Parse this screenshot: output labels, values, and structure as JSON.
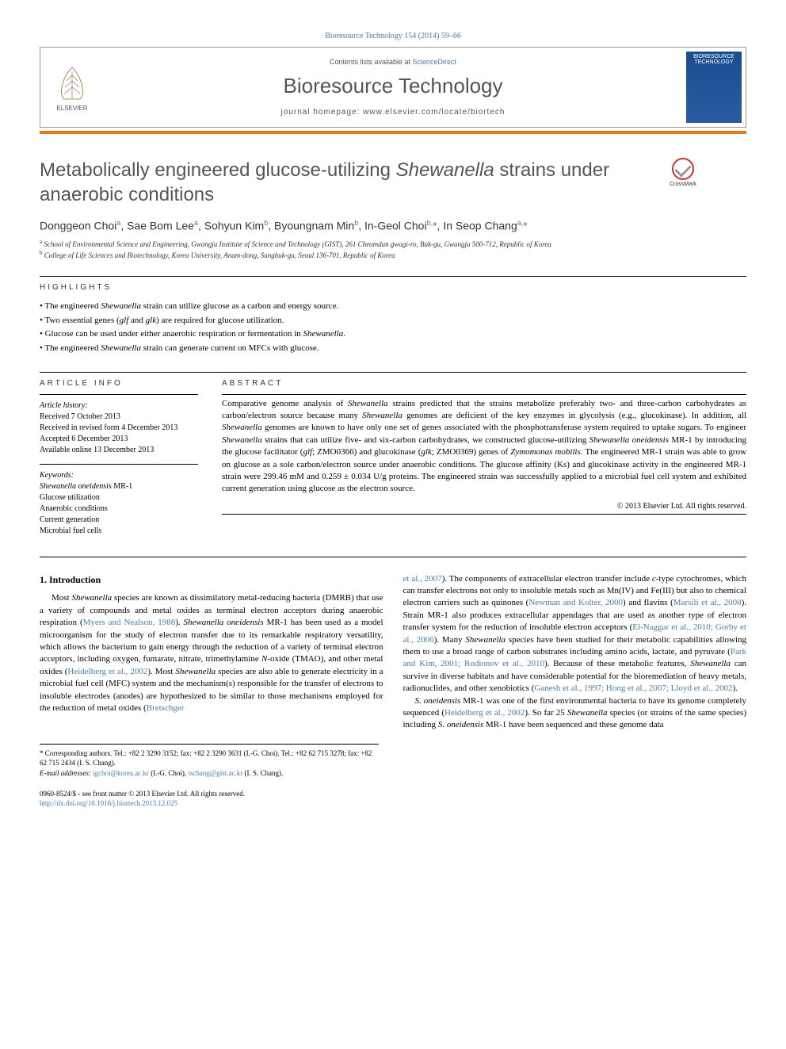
{
  "citation": "Bioresource Technology 154 (2014) 59–66",
  "header": {
    "publisher": "ELSEVIER",
    "contents_prefix": "Contents lists available at ",
    "contents_link": "ScienceDirect",
    "journal_name": "Bioresource Technology",
    "homepage_prefix": "journal homepage: ",
    "homepage_url": "www.elsevier.com/locate/biortech",
    "cover_text": "BIORESOURCE TECHNOLOGY"
  },
  "crossmark_label": "CrossMark",
  "title_parts": {
    "pre": "Metabolically engineered glucose-utilizing ",
    "italic": "Shewanella",
    "post": " strains under anaerobic conditions"
  },
  "authors_html": "Donggeon Choi<sup>a</sup>, Sae Bom Lee<sup>a</sup>, Sohyun Kim<sup>b</sup>, Byoungnam Min<sup>b</sup>, In-Geol Choi<sup>b,</sup><span class='star'>*</span>, In Seop Chang<sup>a,</sup><span class='star'>*</span>",
  "affiliations": [
    {
      "sup": "a",
      "text": "School of Environmental Science and Engineering, Gwangju Institute of Science and Technology (GIST), 261 Cheomdan gwagi-ro, Buk-gu, Gwangju 500-712, Republic of Korea"
    },
    {
      "sup": "b",
      "text": "College of Life Sciences and Biotechnology, Korea University, Anam-dong, Sungbuk-gu, Seoul 136-701, Republic of Korea"
    }
  ],
  "highlights_label": "HIGHLIGHTS",
  "highlights": [
    "The engineered <em>Shewanella</em> strain can utilize glucose as a carbon and energy source.",
    "Two essential genes (<em>glf</em> and <em>glk</em>) are required for glucose utilization.",
    "Glucose can be used under either anaerobic respiration or fermentation in <em>Shewanella</em>.",
    "The engineered <em>Shewanella</em> strain can generate current on MFCs with glucose."
  ],
  "article_info": {
    "heading": "ARTICLE INFO",
    "history_label": "Article history:",
    "history": [
      "Received 7 October 2013",
      "Received in revised form 4 December 2013",
      "Accepted 6 December 2013",
      "Available online 13 December 2013"
    ],
    "keywords_label": "Keywords:",
    "keywords": [
      "<em>Shewanella oneidensis</em> MR-1",
      "Glucose utilization",
      "Anaerobic conditions",
      "Current generation",
      "Microbial fuel cells"
    ]
  },
  "abstract": {
    "heading": "ABSTRACT",
    "text": "Comparative genome analysis of <em>Shewanella</em> strains predicted that the strains metabolize preferably two- and three-carbon carbohydrates as carbon/electron source because many <em>Shewanella</em> genomes are deficient of the key enzymes in glycolysis (e.g., glucokinase). In addition, all <em>Shewanella</em> genomes are known to have only one set of genes associated with the phosphotransferase system required to uptake sugars. To engineer <em>Shewanella</em> strains that can utilize five- and six-carbon carbohydrates, we constructed glucose-utilizing <em>Shewanella oneidensis</em> MR-1 by introducing the glucose facilitator (<em>glf</em>; ZMO0366) and glucokinase (<em>glk</em>; ZMO0369) genes of <em>Zymomonas mobilis</em>. The engineered MR-1 strain was able to grow on glucose as a sole carbon/electron source under anaerobic conditions. The glucose affinity (Ks) and glucokinase activity in the engineered MR-1 strain were 299.46 mM and 0.259 ± 0.034 U/g proteins. The engineered strain was successfully applied to a microbial fuel cell system and exhibited current generation using glucose as the electron source.",
    "copyright": "© 2013 Elsevier Ltd. All rights reserved."
  },
  "intro": {
    "heading": "1. Introduction",
    "col1": "Most <em>Shewanella</em> species are known as dissimilatory metal-reducing bacteria (DMRB) that use a variety of compounds and metal oxides as terminal electron acceptors during anaerobic respiration (<a>Myers and Nealson, 1988</a>). <em>Shewanella oneidensis</em> MR-1 has been used as a model microorganism for the study of electron transfer due to its remarkable respiratory versatility, which allows the bacterium to gain energy through the reduction of a variety of terminal electron acceptors, including oxygen, fumarate, nitrate, trimethylamine <em>N</em>-oxide (TMAO), and other metal oxides (<a>Heidelberg et al., 2002</a>). Most <em>Shewanella</em> species are also able to generate electricity in a microbial fuel cell (MFC) system and the mechanism(s) responsible for the transfer of electrons to insoluble electrodes (anodes) are hypothesized to be similar to those mechanisms employed for the reduction of metal oxides (<a>Bretschger</a>",
    "col2_p1": "<a>et al., 2007</a>). The components of extracellular electron transfer include <em>c</em>-type cytochromes, which can transfer electrons not only to insoluble metals such as Mn(IV) and Fe(III) but also to chemical electron carriers such as quinones (<a>Newman and Kolter, 2000</a>) and flavins (<a>Marsili et al., 2008</a>). Strain MR-1 also produces extracellular appendages that are used as another type of electron transfer system for the reduction of insoluble electron acceptors (<a>El-Naggar et al., 2010; Gorby et al., 2006</a>). Many <em>Shewanella</em> species have been studied for their metabolic capabilities allowing them to use a broad range of carbon substrates including amino acids, lactate, and pyruvate (<a>Park and Kim, 2001; Rodionov et al., 2010</a>). Because of these metabolic features, <em>Shewanella</em> can survive in diverse habitats and have considerable potential for the bioremediation of heavy metals, radionuclides, and other xenobiotics (<a>Ganesh et al., 1997; Hong et al., 2007; Lloyd et al., 2002</a>).",
    "col2_p2": "<em>S. oneidensis</em> MR-1 was one of the first environmental bacteria to have its genome completely sequenced (<a>Heidelberg et al., 2002</a>). So far 25 <em>Shewanella</em> species (or strains of the same species) including <em>S. oneidensis</em> MR-1 have been sequenced and these genome data"
  },
  "footnotes": {
    "corresponding": "* Corresponding authors. Tel.: +82 2 3290 3152; fax: +82 2 3290 3631 (I.-G. Choi). Tel.: +82 62 715 3278; fax: +82 62 715 2434 (I. S. Chang).",
    "emails_label": "E-mail addresses:",
    "email1": "igchoi@korea.ac.kr",
    "email1_name": "(I.-G. Choi),",
    "email2": "ischang@gist.ac.kr",
    "email2_name": "(I. S. Chang)."
  },
  "footer": {
    "line1": "0960-8524/$ - see front matter © 2013 Elsevier Ltd. All rights reserved.",
    "doi": "http://dx.doi.org/10.1016/j.biortech.2013.12.025"
  },
  "colors": {
    "orange": "#e67817",
    "link_blue": "#4a7bb5",
    "text_gray": "#555"
  }
}
